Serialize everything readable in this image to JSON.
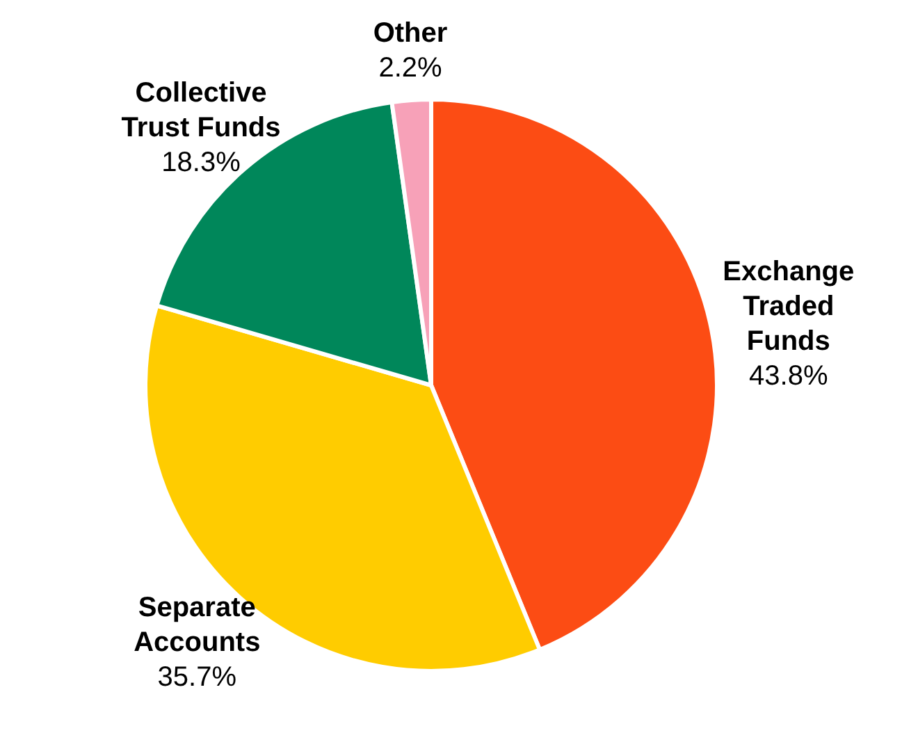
{
  "chart_data": {
    "type": "pie",
    "categories": [
      "Exchange Traded Funds",
      "Separate Accounts",
      "Collective Trust Funds",
      "Other"
    ],
    "values": [
      43.8,
      35.7,
      18.3,
      2.2
    ],
    "colors": [
      "#fc4c14",
      "#ffcc00",
      "#00875a",
      "#f7a1b8"
    ],
    "value_labels": [
      "43.8%",
      "35.7%",
      "18.3%",
      "2.2%"
    ],
    "legend": false
  }
}
